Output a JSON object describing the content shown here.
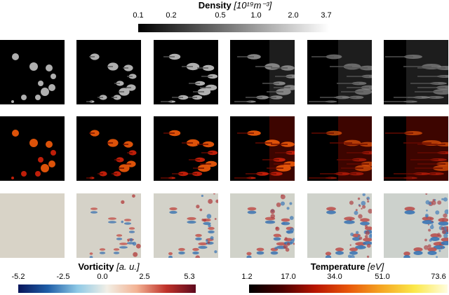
{
  "colorbars": {
    "density": {
      "title": "Density",
      "unit": "[10¹⁹m⁻³]",
      "ticks": [
        "0.1",
        "0.2",
        "0.5",
        "1.0",
        "2.0",
        "3.7"
      ],
      "colors": [
        "#000000",
        "#ffffff"
      ]
    },
    "vorticity": {
      "title": "Vorticity",
      "unit": "[a. u.]",
      "ticks": [
        "-5.2",
        "-2.5",
        "0.0",
        "2.5",
        "5.3"
      ],
      "colors": [
        "#08155a",
        "#1f5ea8",
        "#8ec9e6",
        "#f2efe6",
        "#f3b394",
        "#c0322a",
        "#5e0a1e"
      ]
    },
    "temperature": {
      "title": "Temperature",
      "unit": "[eV]",
      "ticks": [
        "1.2",
        "17.0",
        "34.0",
        "51.0",
        "73.6"
      ],
      "colors": [
        "#000000",
        "#4a0000",
        "#b81400",
        "#e8560a",
        "#f5a623",
        "#fbe84a",
        "#fffde0"
      ]
    }
  },
  "rows": [
    "density",
    "temperature",
    "vorticity"
  ],
  "frames": 6
}
